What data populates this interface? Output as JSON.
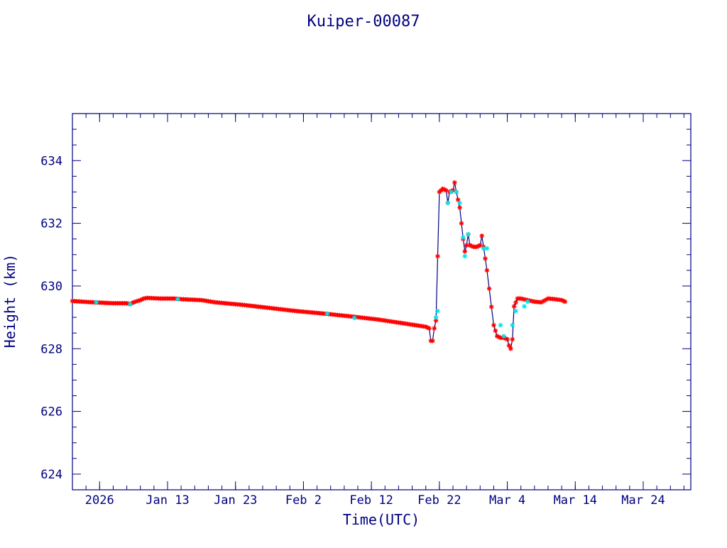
{
  "colors": {
    "axis": "#000080",
    "text": "#000080",
    "line": "#000080",
    "marker_primary": "#ff0000",
    "marker_secondary": "#00e5ee",
    "background": "#ffffff"
  },
  "chart_data": {
    "type": "line",
    "title": "Kuiper-00087",
    "xlabel": "Time(UTC)",
    "ylabel": "Height (km)",
    "xlim": [
      "2025-12-30",
      "2026-03-31"
    ],
    "ylim": [
      623.5,
      635.5
    ],
    "y_ticks": [
      624,
      626,
      628,
      630,
      632,
      634
    ],
    "y_minor_step": 0.5,
    "x_ticks": [
      {
        "date": "2026-01-03",
        "label": "2026"
      },
      {
        "date": "2026-01-13",
        "label": "Jan 13"
      },
      {
        "date": "2026-01-23",
        "label": "Jan 23"
      },
      {
        "date": "2026-02-02",
        "label": "Feb  2"
      },
      {
        "date": "2026-02-12",
        "label": "Feb 12"
      },
      {
        "date": "2026-02-22",
        "label": "Feb 22"
      },
      {
        "date": "2026-03-04",
        "label": "Mar  4"
      },
      {
        "date": "2026-03-14",
        "label": "Mar 14"
      },
      {
        "date": "2026-03-24",
        "label": "Mar 24"
      }
    ],
    "x_minor_step_days": 2,
    "grid": false,
    "legend": "none",
    "series": [
      {
        "marker": "asterisk",
        "points": [
          [
            "2025-12-30T00:00",
            629.52
          ],
          [
            "2026-01-02T00:00",
            629.48
          ],
          [
            "2026-01-05T00:00",
            629.45
          ],
          [
            "2026-01-07T00:00",
            629.45
          ],
          [
            "2026-01-07T12:00",
            629.42
          ],
          [
            "2026-01-08T00:00",
            629.48
          ],
          [
            "2026-01-09T00:00",
            629.55
          ],
          [
            "2026-01-09T12:00",
            629.6
          ],
          [
            "2026-01-10T00:00",
            629.62
          ],
          [
            "2026-01-12T00:00",
            629.6
          ],
          [
            "2026-01-14T00:00",
            629.6
          ],
          [
            "2026-01-15T00:00",
            629.58
          ],
          [
            "2026-01-18T00:00",
            629.55
          ],
          [
            "2026-01-20T00:00",
            629.48
          ],
          [
            "2026-01-24T00:00",
            629.4
          ],
          [
            "2026-01-28T00:00",
            629.3
          ],
          [
            "2026-02-01T00:00",
            629.2
          ],
          [
            "2026-02-05T00:00",
            629.12
          ],
          [
            "2026-02-09T00:00",
            629.03
          ],
          [
            "2026-02-13T00:00",
            628.93
          ],
          [
            "2026-02-17T00:00",
            628.8
          ],
          [
            "2026-02-20T00:00",
            628.7
          ],
          [
            "2026-02-20T12:00",
            628.65
          ],
          [
            "2026-02-20T18:00",
            628.25
          ],
          [
            "2026-02-21T00:00",
            628.25
          ],
          [
            "2026-02-21T06:00",
            628.65
          ],
          [
            "2026-02-21T12:00",
            628.9
          ],
          [
            "2026-02-22T00:00",
            633.0
          ],
          [
            "2026-02-22T12:00",
            633.1
          ],
          [
            "2026-02-23T00:00",
            633.05
          ],
          [
            "2026-02-23T06:00",
            632.65
          ],
          [
            "2026-02-23T12:00",
            633.0
          ],
          [
            "2026-02-24T00:00",
            633.05
          ],
          [
            "2026-02-24T06:00",
            633.3
          ],
          [
            "2026-02-24T12:00",
            633.0
          ],
          [
            "2026-02-25T00:00",
            632.5
          ],
          [
            "2026-02-25T06:00",
            632.0
          ],
          [
            "2026-02-25T12:00",
            631.5
          ],
          [
            "2026-02-25T18:00",
            631.1
          ],
          [
            "2026-02-26T00:00",
            631.3
          ],
          [
            "2026-02-26T06:00",
            631.65
          ],
          [
            "2026-02-26T12:00",
            631.3
          ],
          [
            "2026-02-27T00:00",
            631.25
          ],
          [
            "2026-02-27T12:00",
            631.25
          ],
          [
            "2026-02-28T00:00",
            631.3
          ],
          [
            "2026-02-28T06:00",
            631.6
          ],
          [
            "2026-02-28T12:00",
            631.25
          ],
          [
            "2026-03-01T00:00",
            630.5
          ],
          [
            "2026-03-02T00:00",
            628.75
          ],
          [
            "2026-03-02T12:00",
            628.4
          ],
          [
            "2026-03-03T00:00",
            628.35
          ],
          [
            "2026-03-03T12:00",
            628.35
          ],
          [
            "2026-03-04T00:00",
            628.3
          ],
          [
            "2026-03-04T06:00",
            628.1
          ],
          [
            "2026-03-04T12:00",
            628.0
          ],
          [
            "2026-03-04T18:00",
            628.3
          ],
          [
            "2026-03-05T00:00",
            629.35
          ],
          [
            "2026-03-05T12:00",
            629.6
          ],
          [
            "2026-03-06T00:00",
            629.6
          ],
          [
            "2026-03-07T00:00",
            629.55
          ],
          [
            "2026-03-08T00:00",
            629.5
          ],
          [
            "2026-03-09T00:00",
            629.48
          ],
          [
            "2026-03-10T00:00",
            629.6
          ],
          [
            "2026-03-11T00:00",
            629.58
          ],
          [
            "2026-03-12T00:00",
            629.55
          ],
          [
            "2026-03-12T12:00",
            629.5
          ]
        ]
      }
    ],
    "secondary_points": [
      [
        "2026-01-02T12:00",
        629.48
      ],
      [
        "2026-01-07T12:00",
        629.42
      ],
      [
        "2026-01-14T12:00",
        629.58
      ],
      [
        "2026-02-05T12:00",
        629.12
      ],
      [
        "2026-02-09T12:00",
        628.98
      ],
      [
        "2026-02-21T12:00",
        629.0
      ],
      [
        "2026-02-21T18:00",
        629.2
      ],
      [
        "2026-02-23T06:00",
        632.65
      ],
      [
        "2026-02-23T18:00",
        633.0
      ],
      [
        "2026-02-24T12:00",
        633.0
      ],
      [
        "2026-02-25T00:00",
        632.65
      ],
      [
        "2026-02-25T12:00",
        631.55
      ],
      [
        "2026-02-25T18:00",
        630.95
      ],
      [
        "2026-02-26T06:00",
        631.65
      ],
      [
        "2026-02-28T12:00",
        631.2
      ],
      [
        "2026-03-01T00:00",
        631.2
      ],
      [
        "2026-03-03T00:00",
        628.75
      ],
      [
        "2026-03-03T12:00",
        628.4
      ],
      [
        "2026-03-04T18:00",
        628.75
      ],
      [
        "2026-03-05T06:00",
        629.2
      ],
      [
        "2026-03-06T12:00",
        629.35
      ],
      [
        "2026-03-07T00:00",
        629.5
      ]
    ]
  }
}
